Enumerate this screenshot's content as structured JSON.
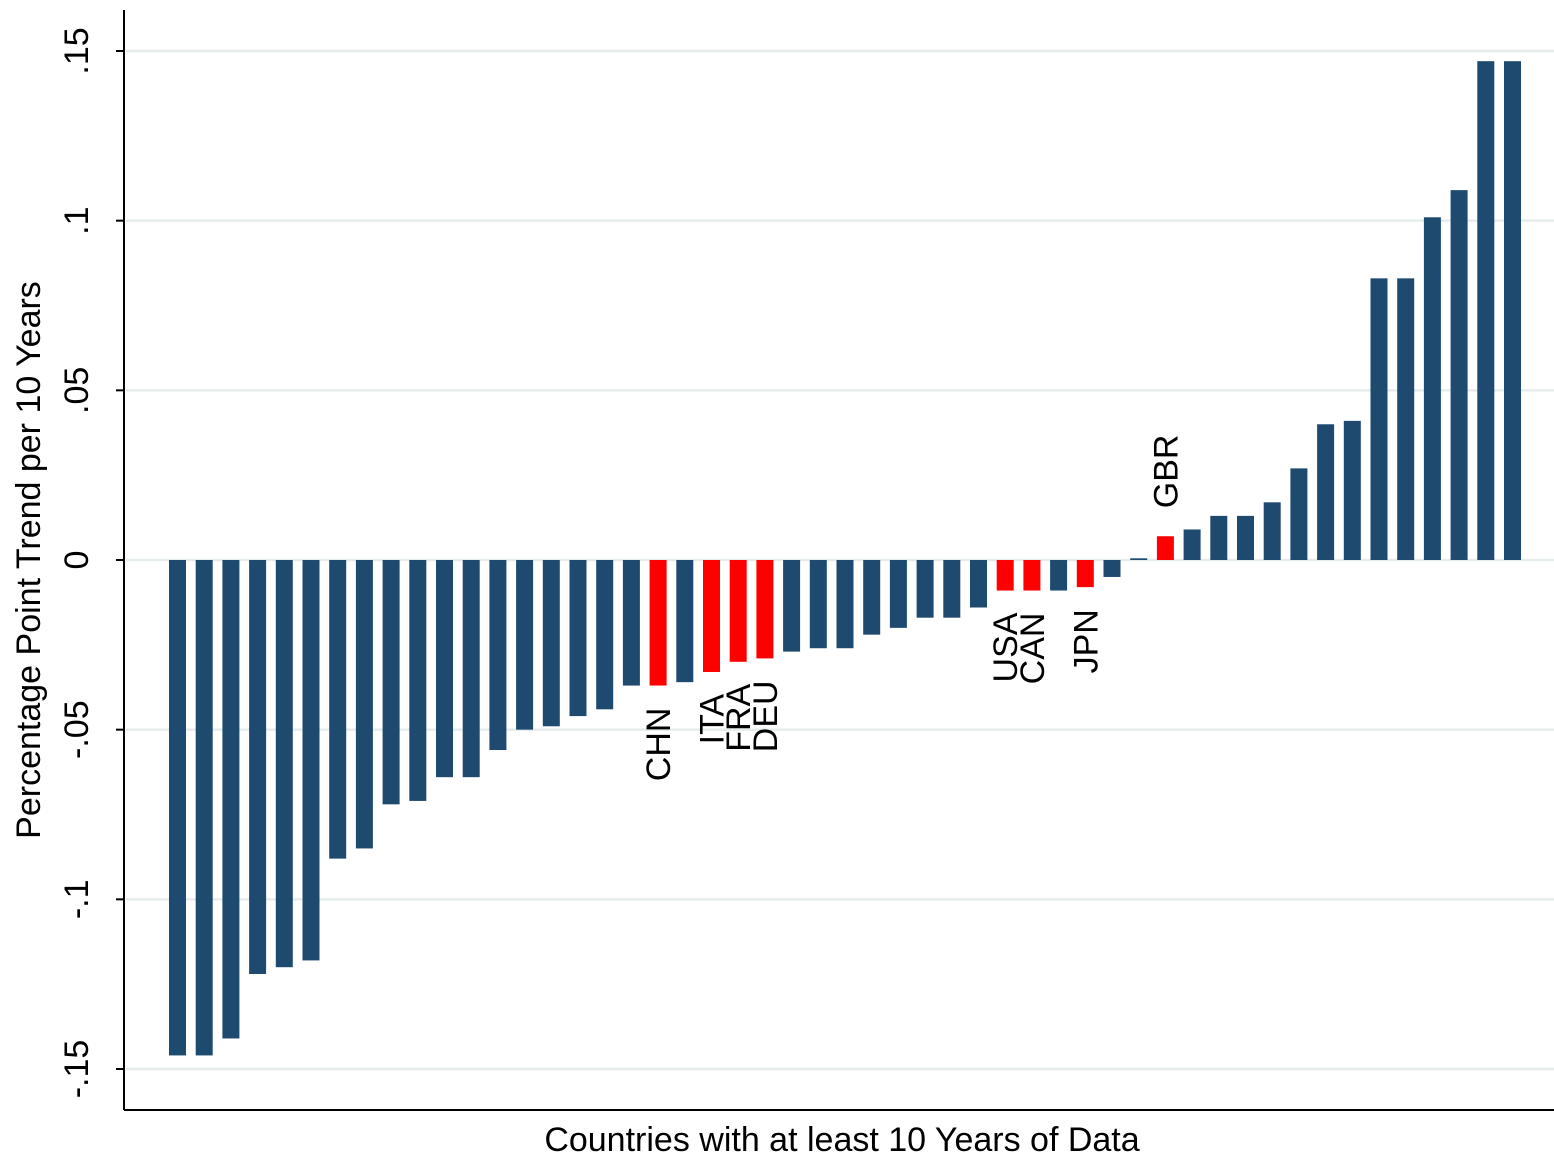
{
  "chart_data": {
    "type": "bar",
    "xlabel": "Countries with at least 10 Years of Data",
    "ylabel": "Percentage Point Trend per 10 Years",
    "ylim": [
      -0.162,
      0.162
    ],
    "yticks": [
      {
        "value": -0.15,
        "label": "-.15"
      },
      {
        "value": -0.1,
        "label": "-.1"
      },
      {
        "value": -0.05,
        "label": "-.05"
      },
      {
        "value": 0,
        "label": "0"
      },
      {
        "value": 0.05,
        "label": ".05"
      },
      {
        "value": 0.1,
        "label": ".1"
      },
      {
        "value": 0.15,
        "label": ".15"
      }
    ],
    "grid": true,
    "colors": {
      "default": "#1f4a6f",
      "highlight": "#ff0000",
      "grid": "#e6ecec"
    },
    "values": [
      -0.146,
      -0.146,
      -0.141,
      -0.122,
      -0.12,
      -0.118,
      -0.088,
      -0.085,
      -0.072,
      -0.071,
      -0.064,
      -0.064,
      -0.056,
      -0.05,
      -0.049,
      -0.046,
      -0.044,
      -0.037,
      -0.037,
      -0.036,
      -0.033,
      -0.03,
      -0.029,
      -0.027,
      -0.026,
      -0.026,
      -0.022,
      -0.02,
      -0.017,
      -0.017,
      -0.014,
      -0.009,
      -0.009,
      -0.009,
      -0.008,
      -0.005,
      0.0005,
      0.007,
      0.009,
      0.013,
      0.013,
      0.017,
      0.027,
      0.04,
      0.041,
      0.083,
      0.083,
      0.101,
      0.109,
      0.147,
      0.147
    ],
    "highlighted": [
      {
        "index": 18,
        "label": "CHN"
      },
      {
        "index": 20,
        "label": "ITA"
      },
      {
        "index": 21,
        "label": "FRA"
      },
      {
        "index": 22,
        "label": "DEU"
      },
      {
        "index": 31,
        "label": "USA"
      },
      {
        "index": 32,
        "label": "CAN"
      },
      {
        "index": 34,
        "label": "JPN"
      },
      {
        "index": 37,
        "label": "GBR"
      }
    ]
  }
}
